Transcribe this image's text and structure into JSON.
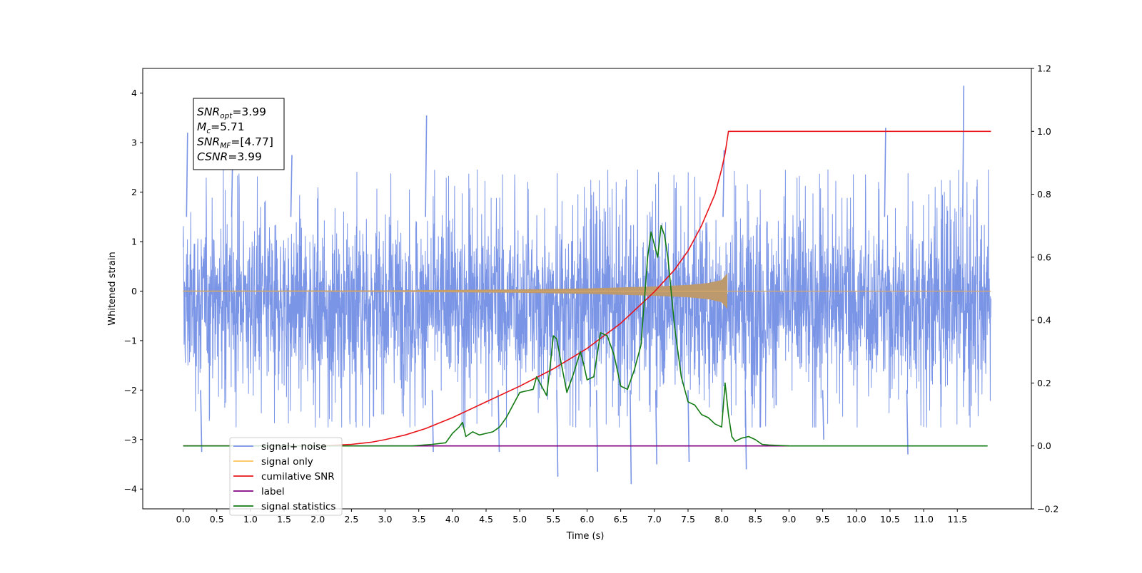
{
  "chart_data": {
    "type": "line",
    "xlabel": "Time (s)",
    "ylabel": "Whitened strain",
    "xlim": [
      -0.6,
      12.6
    ],
    "ylim": [
      -4.4,
      4.5
    ],
    "y2lim": [
      -0.2,
      1.2
    ],
    "x_ticks": [
      0.0,
      0.5,
      1.0,
      1.5,
      2.0,
      2.5,
      3.0,
      3.5,
      4.0,
      4.5,
      5.0,
      5.5,
      6.0,
      6.5,
      7.0,
      7.5,
      8.0,
      8.5,
      9.0,
      9.5,
      10.0,
      10.5,
      11.0,
      11.5
    ],
    "x_tick_labels": [
      "0.0",
      "0.5",
      "1.0",
      "1.5",
      "2.0",
      "2.5",
      "3.0",
      "3.5",
      "4.0",
      "4.5",
      "5.0",
      "5.5",
      "6.0",
      "6.5",
      "7.0",
      "7.5",
      "8.0",
      "8.5",
      "9.0",
      "9.5",
      "10.0",
      "10.5",
      "11.0",
      "11.5"
    ],
    "y_ticks": [
      -4,
      -3,
      -2,
      -1,
      0,
      1,
      2,
      3,
      4
    ],
    "y_tick_labels": [
      "−4",
      "−3",
      "−2",
      "−1",
      "0",
      "1",
      "2",
      "3",
      "4"
    ],
    "y2_ticks": [
      -0.2,
      0.0,
      0.2,
      0.4,
      0.6,
      0.8,
      1.0,
      1.2
    ],
    "y2_tick_labels": [
      "−0.2",
      "0.0",
      "0.2",
      "0.4",
      "0.6",
      "0.8",
      "1.0",
      "1.2"
    ],
    "grid": false,
    "legend_position": "lower-left",
    "annotation": {
      "lines": [
        {
          "main": "SNR",
          "sub": "opt",
          "rest": "=3.99"
        },
        {
          "main": "M",
          "sub": "c",
          "rest": "=5.71"
        },
        {
          "main": "SNR",
          "sub": "MF",
          "rest": "=[4.77]"
        },
        {
          "main": "CSNR",
          "sub": "",
          "rest": "=3.99"
        }
      ]
    },
    "series": [
      {
        "name": "signal+ noise",
        "color": "#7a94e6",
        "axis": "left",
        "style": "noise",
        "x_range": [
          0.0,
          12.0
        ],
        "y_typical_range": [
          -2.2,
          1.7
        ],
        "x": [
          0.05,
          0.26,
          0.72,
          1.6,
          3.6,
          3.7,
          4.68,
          5.55,
          6.14,
          6.64,
          7.02,
          7.5,
          8.02,
          8.35,
          9.5,
          10.42,
          10.75,
          11.58
        ],
        "y": [
          3.2,
          -3.25,
          2.85,
          2.75,
          3.55,
          -3.25,
          -3.25,
          -3.75,
          -3.65,
          -3.9,
          -3.5,
          -3.45,
          2.85,
          -3.6,
          -3.0,
          3.3,
          -3.3,
          4.15
        ]
      },
      {
        "name": "signal only",
        "color": "#ffc35a",
        "axis": "left",
        "style": "chirp",
        "x": [
          0.0,
          3.0,
          4.0,
          5.0,
          6.0,
          6.5,
          7.0,
          7.5,
          7.8,
          8.0,
          8.08,
          8.1,
          12.0
        ],
        "amplitude": [
          0.005,
          0.01,
          0.02,
          0.03,
          0.05,
          0.07,
          0.09,
          0.12,
          0.16,
          0.22,
          0.35,
          0.0,
          0.0
        ]
      },
      {
        "name": "cumilative SNR",
        "color": "#e8141a",
        "axis": "right",
        "x": [
          0.0,
          2.0,
          2.5,
          2.8,
          3.0,
          3.3,
          3.6,
          4.0,
          4.5,
          5.0,
          5.5,
          6.0,
          6.5,
          7.0,
          7.3,
          7.5,
          7.7,
          7.9,
          8.0,
          8.05,
          8.1,
          12.0
        ],
        "y": [
          0.0,
          0.0,
          0.005,
          0.012,
          0.02,
          0.035,
          0.055,
          0.09,
          0.14,
          0.19,
          0.245,
          0.31,
          0.39,
          0.49,
          0.56,
          0.62,
          0.7,
          0.8,
          0.88,
          0.93,
          1.0,
          1.0
        ]
      },
      {
        "name": "label",
        "color": "#800080",
        "axis": "right",
        "x": [
          0.0,
          9.0
        ],
        "y": [
          0.0,
          0.0
        ]
      },
      {
        "name": "signal statistics",
        "color": "#127a12",
        "axis": "right",
        "x": [
          0.0,
          3.4,
          3.7,
          3.9,
          4.0,
          4.1,
          4.15,
          4.2,
          4.3,
          4.4,
          4.5,
          4.6,
          4.7,
          4.8,
          4.9,
          5.0,
          5.1,
          5.2,
          5.25,
          5.3,
          5.4,
          5.45,
          5.5,
          5.55,
          5.6,
          5.7,
          5.8,
          5.9,
          5.95,
          6.0,
          6.1,
          6.2,
          6.3,
          6.35,
          6.4,
          6.5,
          6.6,
          6.7,
          6.8,
          6.9,
          6.95,
          7.05,
          7.1,
          7.15,
          7.2,
          7.3,
          7.4,
          7.5,
          7.6,
          7.7,
          7.8,
          7.9,
          8.0,
          8.05,
          8.1,
          8.15,
          8.2,
          8.3,
          8.4,
          8.5,
          8.6,
          8.7,
          9.0,
          11.95
        ],
        "y": [
          0.0,
          0.0,
          0.005,
          0.01,
          0.04,
          0.06,
          0.075,
          0.03,
          0.045,
          0.035,
          0.04,
          0.045,
          0.06,
          0.09,
          0.13,
          0.17,
          0.175,
          0.18,
          0.22,
          0.2,
          0.16,
          0.25,
          0.35,
          0.34,
          0.28,
          0.17,
          0.23,
          0.3,
          0.26,
          0.21,
          0.22,
          0.36,
          0.35,
          0.32,
          0.29,
          0.19,
          0.18,
          0.24,
          0.32,
          0.6,
          0.68,
          0.6,
          0.7,
          0.67,
          0.6,
          0.38,
          0.22,
          0.14,
          0.13,
          0.1,
          0.09,
          0.07,
          0.06,
          0.2,
          0.1,
          0.03,
          0.015,
          0.025,
          0.03,
          0.02,
          0.005,
          0.003,
          0.0,
          0.0
        ]
      }
    ]
  }
}
